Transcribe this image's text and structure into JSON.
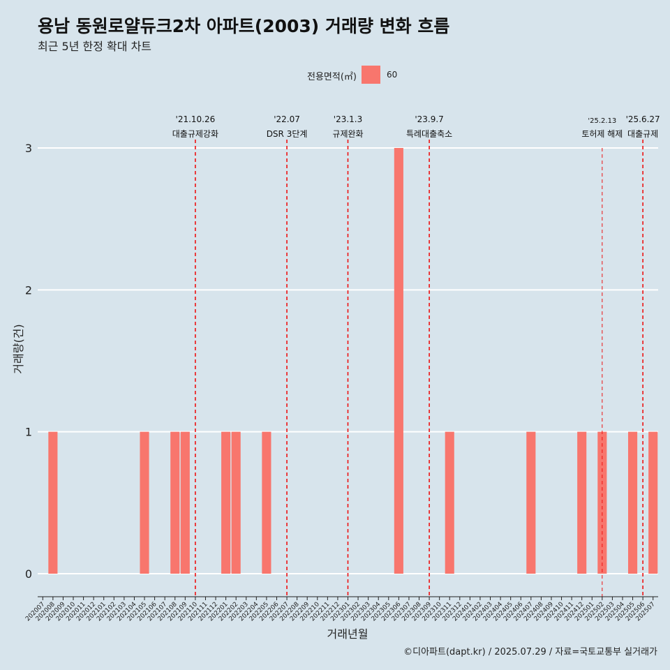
{
  "header": {
    "title": "용남 동원로얄듀크2차 아파트(2003) 거래량 변화 흐름",
    "subtitle": "최근 5년 한정 확대 차트"
  },
  "legend": {
    "title": "전용면적(㎡)",
    "items": [
      {
        "label": "60",
        "color": "#f8766d"
      }
    ]
  },
  "caption": "©디아파트(dapt.kr) / 2025.07.29 / 자료=국토교통부 실거래가",
  "chart_data": {
    "type": "bar",
    "title": "용남 동원로얄듀크2차 아파트(2003) 거래량 변화 흐름",
    "subtitle": "최근 5년 한정 확대 차트",
    "xlabel": "거래년월",
    "ylabel": "거래량(건)",
    "ylim": [
      0,
      3
    ],
    "yticks": [
      0,
      1,
      2,
      3
    ],
    "grid": true,
    "legend_position": "top",
    "bar_color": "#f8766d",
    "categories": [
      "202007",
      "202008",
      "202009",
      "202010",
      "202011",
      "202012",
      "202101",
      "202102",
      "202103",
      "202104",
      "202105",
      "202106",
      "202107",
      "202108",
      "202109",
      "202110",
      "202111",
      "202112",
      "202201",
      "202202",
      "202203",
      "202204",
      "202205",
      "202206",
      "202207",
      "202208",
      "202209",
      "202210",
      "202211",
      "202212",
      "202301",
      "202302",
      "202303",
      "202304",
      "202305",
      "202306",
      "202307",
      "202308",
      "202309",
      "202310",
      "202311",
      "202312",
      "202401",
      "202402",
      "202403",
      "202404",
      "202405",
      "202406",
      "202407",
      "202408",
      "202409",
      "202410",
      "202411",
      "202412",
      "202501",
      "202502",
      "202503",
      "202504",
      "202505",
      "202506",
      "202507"
    ],
    "series": [
      {
        "name": "60",
        "values": [
          0,
          1,
          0,
          0,
          0,
          0,
          0,
          0,
          0,
          0,
          1,
          0,
          0,
          1,
          1,
          0,
          0,
          0,
          1,
          1,
          0,
          0,
          1,
          0,
          0,
          0,
          0,
          0,
          0,
          0,
          0,
          0,
          0,
          0,
          0,
          3,
          0,
          0,
          0,
          0,
          1,
          0,
          0,
          0,
          0,
          0,
          0,
          0,
          1,
          0,
          0,
          0,
          0,
          1,
          0,
          1,
          0,
          0,
          1,
          0,
          1
        ]
      }
    ],
    "annotations": [
      {
        "date": "'21.10.26",
        "label": "대출규제강화",
        "x": "202110"
      },
      {
        "date": "'22.07",
        "label": "DSR 3단계",
        "x": "202207"
      },
      {
        "date": "'23.1.3",
        "label": "규제완화",
        "x": "202301"
      },
      {
        "date": "'23.9.7",
        "label": "특례대출축소",
        "x": "202309"
      },
      {
        "date": "'25.2.13",
        "label": "토허제 해제",
        "x": "202502",
        "small": true
      },
      {
        "date": "'25.6.27",
        "label": "대출규제",
        "x": "202506"
      }
    ]
  }
}
